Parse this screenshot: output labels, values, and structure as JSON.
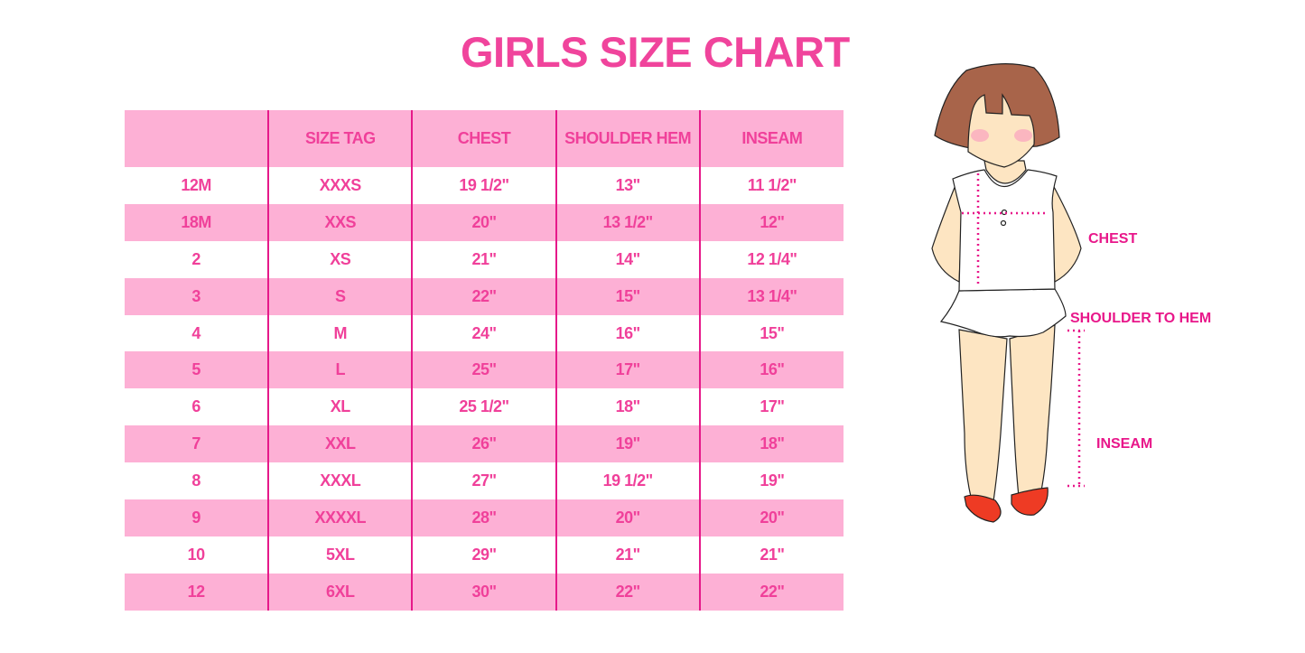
{
  "title": "GIRLS SIZE CHART",
  "table": {
    "headers": [
      "",
      "SIZE TAG",
      "CHEST",
      "SHOULDER HEM",
      "INSEAM"
    ],
    "rows": [
      [
        "12M",
        "XXXS",
        "19 1/2\"",
        "13\"",
        "11 1/2\""
      ],
      [
        "18M",
        "XXS",
        "20\"",
        "13 1/2\"",
        "12\""
      ],
      [
        "2",
        "XS",
        "21\"",
        "14\"",
        "12 1/4\""
      ],
      [
        "3",
        "S",
        "22\"",
        "15\"",
        "13 1/4\""
      ],
      [
        "4",
        "M",
        "24\"",
        "16\"",
        "15\""
      ],
      [
        "5",
        "L",
        "25\"",
        "17\"",
        "16\""
      ],
      [
        "6",
        "XL",
        "25 1/2\"",
        "18\"",
        "17\""
      ],
      [
        "7",
        "XXL",
        "26\"",
        "19\"",
        "18\""
      ],
      [
        "8",
        "XXXL",
        "27\"",
        "19 1/2\"",
        "19\""
      ],
      [
        "9",
        "XXXXL",
        "28\"",
        "20\"",
        "20\""
      ],
      [
        "10",
        "5XL",
        "29\"",
        "21\"",
        "21\""
      ],
      [
        "12",
        "6XL",
        "30\"",
        "22\"",
        "22\""
      ]
    ]
  },
  "illustration": {
    "labels": {
      "chest": "CHEST",
      "shoulder_to_hem": "SHOULDER TO HEM",
      "inseam": "INSEAM"
    }
  },
  "colors": {
    "title": "#f0449c",
    "header_bg": "#fdb0d5",
    "text": "#f0409a",
    "divider": "#e6198a",
    "measure": "#e8178a"
  }
}
